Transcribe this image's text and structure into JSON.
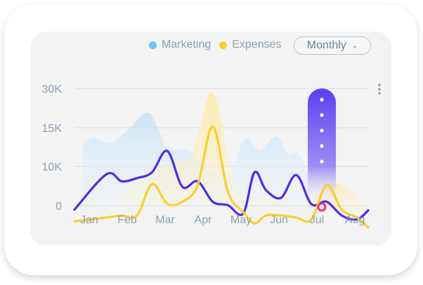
{
  "chart_data": {
    "type": "line",
    "categories": [
      "Jan",
      "Feb",
      "Mar",
      "Apr",
      "May",
      "Jun",
      "Jul",
      "Aug"
    ],
    "y_ticks": [
      "30K",
      "15K",
      "10K",
      "0"
    ],
    "legend": {
      "placement": "top-right",
      "items": [
        {
          "name": "Marketing",
          "color": "#6cc3f5"
        },
        {
          "name": "Expenses",
          "color": "#f9cf2f"
        }
      ]
    },
    "series": [
      {
        "name": "Marketing",
        "color": "#4b2fe0",
        "x": [
          0,
          0.4,
          0.8,
          1.2,
          1.6,
          2.0,
          2.4,
          2.8,
          3.2,
          3.6,
          4.0,
          4.3,
          4.6,
          5.0,
          5.4,
          5.8,
          6.2,
          6.6,
          7.0,
          7.4
        ],
        "values": [
          -1000,
          8000,
          6200,
          7000,
          8500,
          12000,
          4800,
          6200,
          1000,
          100,
          -2000,
          8500,
          4000,
          2000,
          7800,
          400,
          1000,
          -2500,
          -3500,
          -1200
        ]
      },
      {
        "name": "Expenses",
        "color": "#f9cf2f",
        "x": [
          0,
          0.4,
          0.8,
          1.2,
          1.6,
          2.0,
          2.4,
          2.8,
          3.2,
          3.6,
          4.0,
          4.3,
          4.6,
          5.0,
          5.4,
          5.8,
          6.2,
          6.6,
          7.0,
          7.4
        ],
        "values": [
          -4000,
          -3000,
          -2500,
          -2500,
          5500,
          500,
          1000,
          5200,
          15500,
          3500,
          -1600,
          -4500,
          -2500,
          -2500,
          -3000,
          -3500,
          5200,
          -1000,
          -3000,
          -5500
        ]
      }
    ],
    "highlight": {
      "category": "Jul"
    },
    "ylim": [
      -5500,
      33000
    ],
    "grid": true
  },
  "controls": {
    "period_label": "Monthly",
    "chevron_icon": "chevron-down-icon",
    "menu_icon": "more-vertical-icon"
  }
}
